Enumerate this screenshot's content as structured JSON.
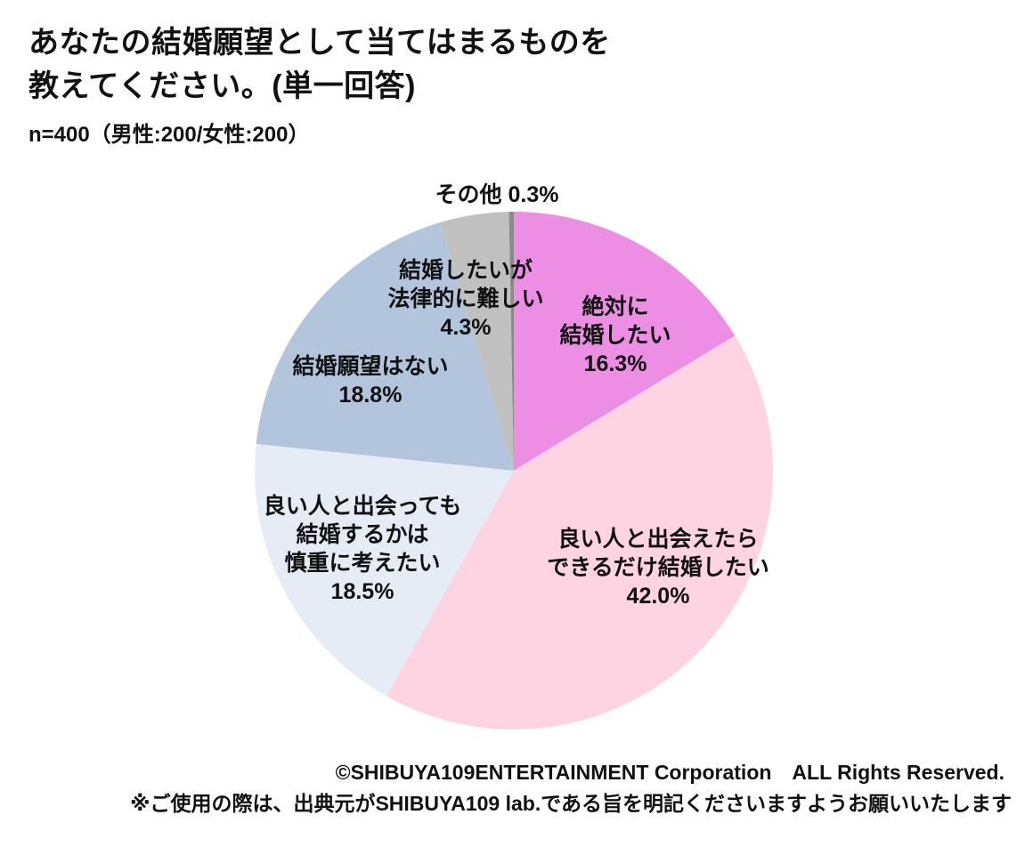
{
  "page": {
    "title": "あなたの結婚願望として当てはまるものを\n教えてください。(単一回答)",
    "subtitle": "n=400（男性:200/女性:200）",
    "footer_copyright": "©SHIBUYA109ENTERTAINMENT Corporation　ALL Rights Reserved.",
    "footer_note": "※ご使用の際は、出典元がSHIBUYA109 lab.である旨を明記くださいますようお願いいたします"
  },
  "chart_data": {
    "type": "pie",
    "title": "あなたの結婚願望として当てはまるものを教えてください。(単一回答)",
    "sample_note": "n=400（男性:200/女性:200）",
    "unit": "%",
    "start_angle_deg": 0,
    "direction": "clockwise",
    "legend_position": "labels-on-slices",
    "segments": [
      {
        "id": "zettai-kekkon-shitai",
        "label": "絶対に結婚したい",
        "label_lines": "絶対に\n結婚したい\n16.3%",
        "value": 16.3,
        "color": "#EC8FE4"
      },
      {
        "id": "dekirudake-kekkon-shitai",
        "label": "良い人と出会えたらできるだけ結婚したい",
        "label_lines": "良い人と出会えたら\nできるだけ結婚したい\n42.0%",
        "value": 42.0,
        "color": "#FED3E2"
      },
      {
        "id": "shincho-ni-kangaetai",
        "label": "良い人と出会っても結婚するかは慎重に考えたい",
        "label_lines": "良い人と出会っても\n結婚するかは\n慎重に考えたい\n18.5%",
        "value": 18.5,
        "color": "#E6ECF5"
      },
      {
        "id": "kekkon-ganbo-wa-nai",
        "label": "結婚願望はない",
        "label_lines": "結婚願望はない\n18.8%",
        "value": 18.8,
        "color": "#B3C5DC"
      },
      {
        "id": "horitsuteki-ni-muzukashii",
        "label": "結婚したいが法律的に難しい",
        "label_lines": "結婚したいが\n法律的に難しい\n4.3%",
        "value": 4.3,
        "color": "#C1C0C0"
      },
      {
        "id": "sonota",
        "label": "その他",
        "label_lines": "その他 0.3%",
        "value": 0.3,
        "color": "#8A8A8A"
      }
    ]
  }
}
